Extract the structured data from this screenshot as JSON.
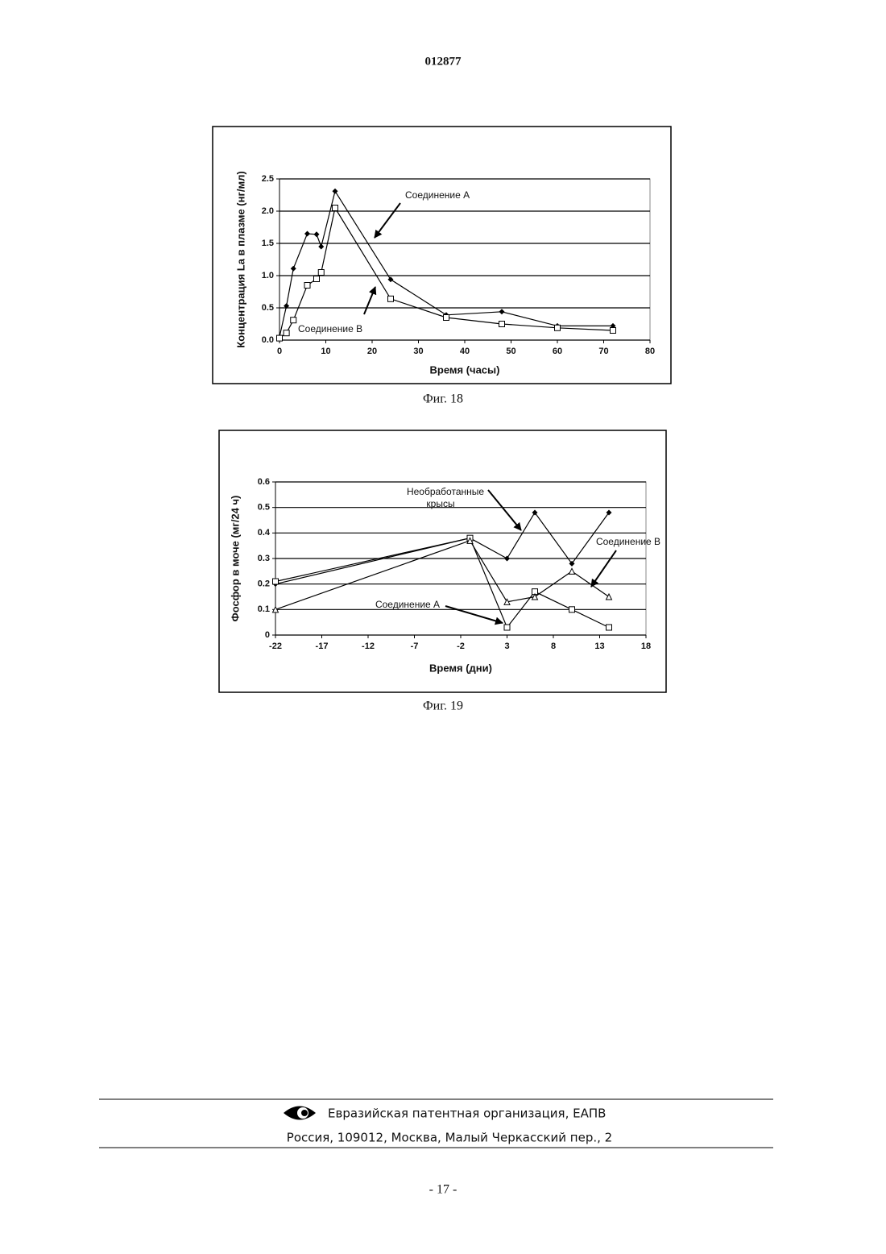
{
  "header": {
    "doc_number": "012877"
  },
  "chart_data": [
    {
      "type": "line",
      "caption": "Фиг. 18",
      "x_label": "Время (часы)",
      "y_label": "Концентрация La в плазме (нг/мл)",
      "xlim": [
        0,
        80
      ],
      "xticks": [
        0,
        10,
        20,
        30,
        40,
        50,
        60,
        70,
        80
      ],
      "ylim": [
        0,
        2.5
      ],
      "yticks": [
        {
          "value": 0,
          "label": "0.0"
        },
        0.5,
        {
          "value": 1,
          "label": "1.0"
        },
        1.5,
        {
          "value": 2,
          "label": "2.0"
        },
        2.5
      ],
      "grid": true,
      "annotations": [
        "Соединение А",
        "Соединение В"
      ],
      "series": [
        {
          "marker": "diamond",
          "color": "#000000",
          "x": [
            0,
            1.5,
            3,
            6,
            8,
            9,
            12,
            24,
            36,
            48,
            60,
            72
          ],
          "values": [
            0.05,
            0.53,
            1.11,
            1.65,
            1.64,
            1.45,
            2.31,
            0.94,
            0.39,
            0.44,
            0.22,
            0.22
          ]
        },
        {
          "marker": "square",
          "color": "#000000",
          "x": [
            0,
            1.5,
            3,
            6,
            8,
            9,
            12,
            24,
            36,
            48,
            60,
            72
          ],
          "values": [
            0.03,
            0.11,
            0.31,
            0.85,
            0.95,
            1.05,
            2.05,
            0.64,
            0.35,
            0.25,
            0.19,
            0.15
          ]
        }
      ]
    },
    {
      "type": "line",
      "caption": "Фиг. 19",
      "x_label": "Время (дни)",
      "y_label": "Фосфор в моче (мг/24 ч)",
      "xlim": [
        -22,
        18
      ],
      "xticks": [
        -22,
        -17,
        -12,
        -7,
        -2,
        3,
        8,
        13,
        18
      ],
      "ylim": [
        0,
        0.6
      ],
      "yticks": [
        0,
        0.1,
        0.2,
        0.3,
        0.4,
        0.5,
        0.6
      ],
      "grid": true,
      "annotations": [
        "Необработанные",
        "крысы",
        "Соединение В",
        "Соединение А"
      ],
      "series": [
        {
          "marker": "diamond",
          "color": "#000000",
          "x": [
            -22,
            -1,
            3,
            6,
            10,
            14
          ],
          "values": [
            0.2,
            0.38,
            0.3,
            0.48,
            0.28,
            0.48
          ]
        },
        {
          "marker": "square",
          "color": "#000000",
          "x": [
            -22,
            -1,
            3,
            6,
            10,
            14
          ],
          "values": [
            0.21,
            0.38,
            0.03,
            0.17,
            0.1,
            0.03
          ]
        },
        {
          "marker": "triangle",
          "color": "#000000",
          "x": [
            -22,
            -1,
            3,
            6,
            10,
            14
          ],
          "values": [
            0.1,
            0.37,
            0.13,
            0.15,
            0.25,
            0.15
          ]
        }
      ]
    }
  ],
  "footer": {
    "organization": "Евразийская патентная организация, ЕАПВ",
    "address": "Россия, 109012, Москва, Малый Черкасский пер., 2",
    "page_number": "- 17 -"
  }
}
